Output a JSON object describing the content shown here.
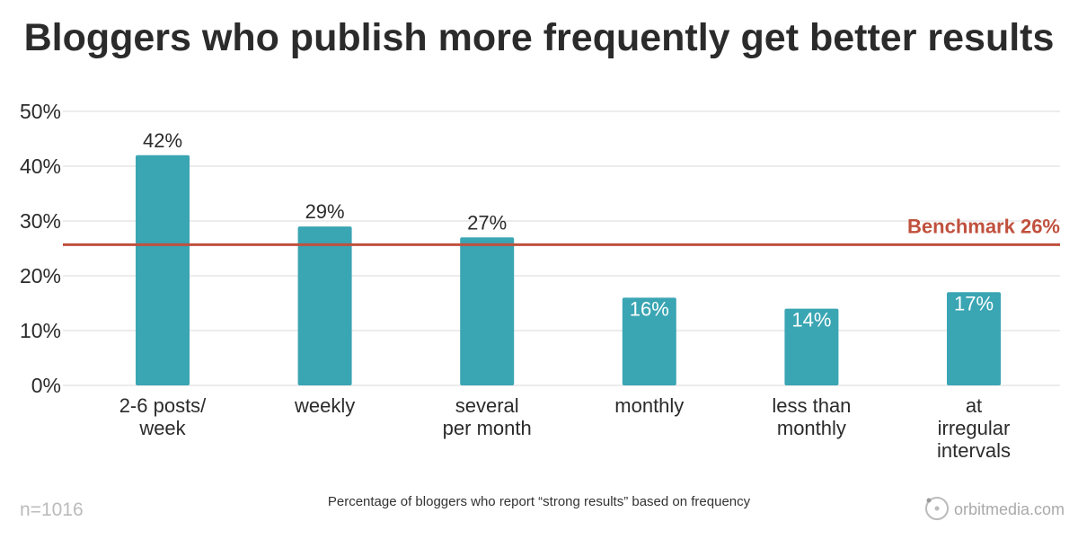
{
  "chart_data": {
    "type": "bar",
    "title": "Bloggers who publish more frequently get better results",
    "categories": [
      [
        "2-6 posts/",
        "week"
      ],
      [
        "weekly"
      ],
      [
        "several",
        "per month"
      ],
      [
        "monthly"
      ],
      [
        "less than",
        "monthly"
      ],
      [
        "at",
        "irregular",
        "intervals"
      ]
    ],
    "values": [
      42,
      29,
      27,
      16,
      14,
      17
    ],
    "data_labels": [
      "42%",
      "29%",
      "27%",
      "16%",
      "14%",
      "17%"
    ],
    "ylim": [
      0,
      50
    ],
    "yticks": [
      "0%",
      "10%",
      "20%",
      "30%",
      "40%",
      "50%"
    ],
    "grid": true,
    "benchmark": {
      "value": 26,
      "label": "Benchmark 26%"
    },
    "caption": "Percentage of bloggers who report “strong results” based on frequency",
    "sample_size": "n=1016",
    "colors": {
      "bar": "#3aa5b3",
      "benchmark": "#c0503d",
      "grid": "#e6e6e6"
    }
  },
  "brand": {
    "text": "orbitmedia.com",
    "icon": "orbit-logo-icon"
  }
}
